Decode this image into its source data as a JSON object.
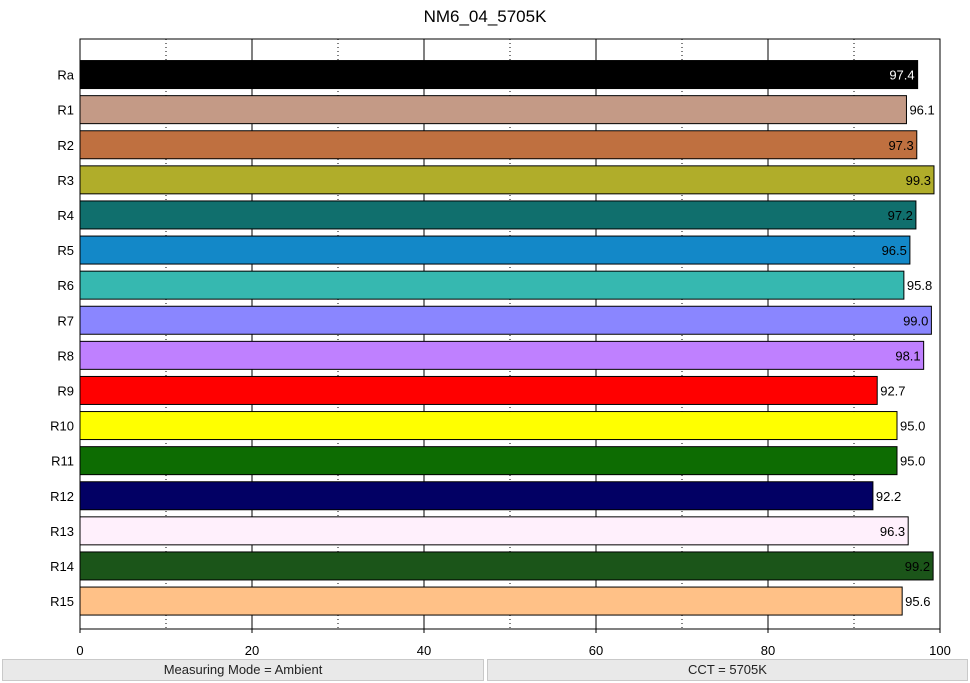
{
  "chart_data": {
    "type": "bar",
    "orientation": "horizontal",
    "title": "NM6_04_5705K",
    "categories": [
      "Ra",
      "R1",
      "R2",
      "R3",
      "R4",
      "R5",
      "R6",
      "R7",
      "R8",
      "R9",
      "R10",
      "R11",
      "R12",
      "R13",
      "R14",
      "R15"
    ],
    "values": [
      97.4,
      96.1,
      97.3,
      99.3,
      97.2,
      96.5,
      95.8,
      99.0,
      98.1,
      92.7,
      95.0,
      95.0,
      92.2,
      96.3,
      99.2,
      95.6
    ],
    "value_labels": [
      "97.4",
      "96.1",
      "97.3",
      "99.3",
      "97.2",
      "96.5",
      "95.8",
      "99.0",
      "98.1",
      "92.7",
      "95.0",
      "95.0",
      "92.2",
      "96.3",
      "99.2",
      "95.6"
    ],
    "colors": [
      "#000000",
      "#c49a86",
      "#bf7040",
      "#b0ad2a",
      "#106f6d",
      "#1388c8",
      "#36b8b0",
      "#8a86ff",
      "#bf80ff",
      "#ff0000",
      "#ffff00",
      "#0d6c02",
      "#020064",
      "#fff0fc",
      "#1b5519",
      "#ffc187"
    ],
    "xlim": [
      0,
      100
    ],
    "xticks": [
      0,
      20,
      40,
      60,
      80,
      100
    ],
    "xtick_labels": [
      "0",
      "20",
      "40",
      "60",
      "80",
      "100"
    ],
    "grid": "vertical dotted minor, solid major",
    "xlabel": "",
    "ylabel": ""
  },
  "status": {
    "measuring_mode": "Measuring Mode = Ambient",
    "cct": "CCT = 5705K"
  }
}
